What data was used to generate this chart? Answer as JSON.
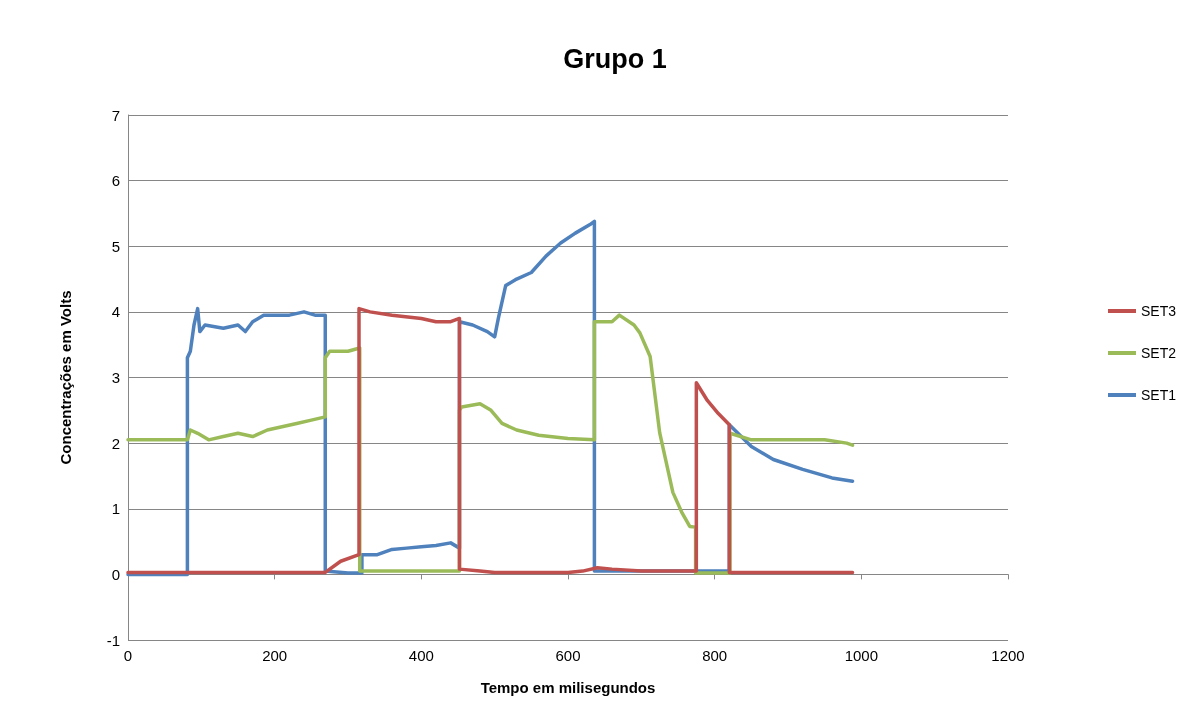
{
  "chart_data": {
    "type": "line",
    "title": "Grupo 1",
    "xlabel": "Tempo em milisegundos",
    "ylabel": "Concentrações em Volts",
    "xlim": [
      0,
      1200
    ],
    "xticks": [
      0,
      200,
      400,
      600,
      800,
      1000,
      1200
    ],
    "ylim": [
      -1,
      7
    ],
    "yticks": [
      -1,
      0,
      1,
      2,
      3,
      4,
      5,
      6,
      7
    ],
    "grid": "y",
    "legend": "right",
    "marker": "none",
    "line_style": "solid",
    "series": [
      {
        "name": "SET3",
        "color": "#c0504d",
        "x": [
          0,
          100,
          200,
          269,
          290,
          315,
          315,
          330,
          360,
          400,
          420,
          440,
          452,
          452,
          480,
          500,
          600,
          620,
          640,
          660,
          700,
          775,
          775,
          790,
          805,
          820,
          820,
          900,
          988
        ],
        "values": [
          0.03,
          0.03,
          0.03,
          0.03,
          0.2,
          0.3,
          4.05,
          4.0,
          3.95,
          3.9,
          3.85,
          3.85,
          3.9,
          0.08,
          0.05,
          0.03,
          0.03,
          0.05,
          0.1,
          0.08,
          0.05,
          0.05,
          2.92,
          2.65,
          2.45,
          2.28,
          0.03,
          0.03,
          0.03
        ]
      },
      {
        "name": "SET2",
        "color": "#9bbb59",
        "x": [
          0,
          81,
          85,
          95,
          110,
          130,
          150,
          170,
          190,
          210,
          230,
          250,
          269,
          269,
          275,
          300,
          316,
          316,
          350,
          400,
          452,
          452,
          455,
          480,
          495,
          510,
          530,
          560,
          600,
          636,
          636,
          660,
          670,
          690,
          698,
          712,
          725,
          743,
          755,
          766,
          774,
          774,
          800,
          821,
          821,
          850,
          900,
          950,
          980,
          988
        ],
        "values": [
          2.05,
          2.05,
          2.2,
          2.15,
          2.05,
          2.1,
          2.15,
          2.1,
          2.2,
          2.25,
          2.3,
          2.35,
          2.4,
          3.3,
          3.4,
          3.4,
          3.45,
          0.05,
          0.05,
          0.05,
          0.05,
          2.5,
          2.55,
          2.6,
          2.5,
          2.3,
          2.2,
          2.12,
          2.07,
          2.05,
          3.85,
          3.85,
          3.95,
          3.8,
          3.68,
          3.32,
          2.16,
          1.25,
          0.95,
          0.73,
          0.72,
          0.02,
          0.02,
          0.02,
          2.15,
          2.05,
          2.05,
          2.05,
          2.0,
          1.97
        ]
      },
      {
        "name": "SET1",
        "color": "#4f81bd",
        "x": [
          0,
          81,
          81,
          85,
          90,
          95,
          98,
          105,
          130,
          150,
          160,
          170,
          185,
          200,
          220,
          240,
          255,
          269,
          269,
          300,
          319,
          319,
          340,
          360,
          380,
          400,
          420,
          440,
          452,
          452,
          470,
          490,
          500,
          505,
          515,
          530,
          550,
          570,
          590,
          610,
          630,
          636,
          636,
          700,
          760,
          820,
          820,
          850,
          880,
          920,
          960,
          988
        ],
        "values": [
          0,
          0,
          3.3,
          3.4,
          3.8,
          4.05,
          3.7,
          3.8,
          3.75,
          3.8,
          3.7,
          3.85,
          3.95,
          3.95,
          3.95,
          4.0,
          3.95,
          3.95,
          0.05,
          0.02,
          0.02,
          0.3,
          0.3,
          0.38,
          0.4,
          0.42,
          0.44,
          0.48,
          0.4,
          3.85,
          3.8,
          3.7,
          3.62,
          3.9,
          4.4,
          4.5,
          4.6,
          4.85,
          5.05,
          5.2,
          5.33,
          5.38,
          0.05,
          0.05,
          0.05,
          0.05,
          2.28,
          1.95,
          1.75,
          1.6,
          1.47,
          1.42
        ]
      }
    ]
  }
}
